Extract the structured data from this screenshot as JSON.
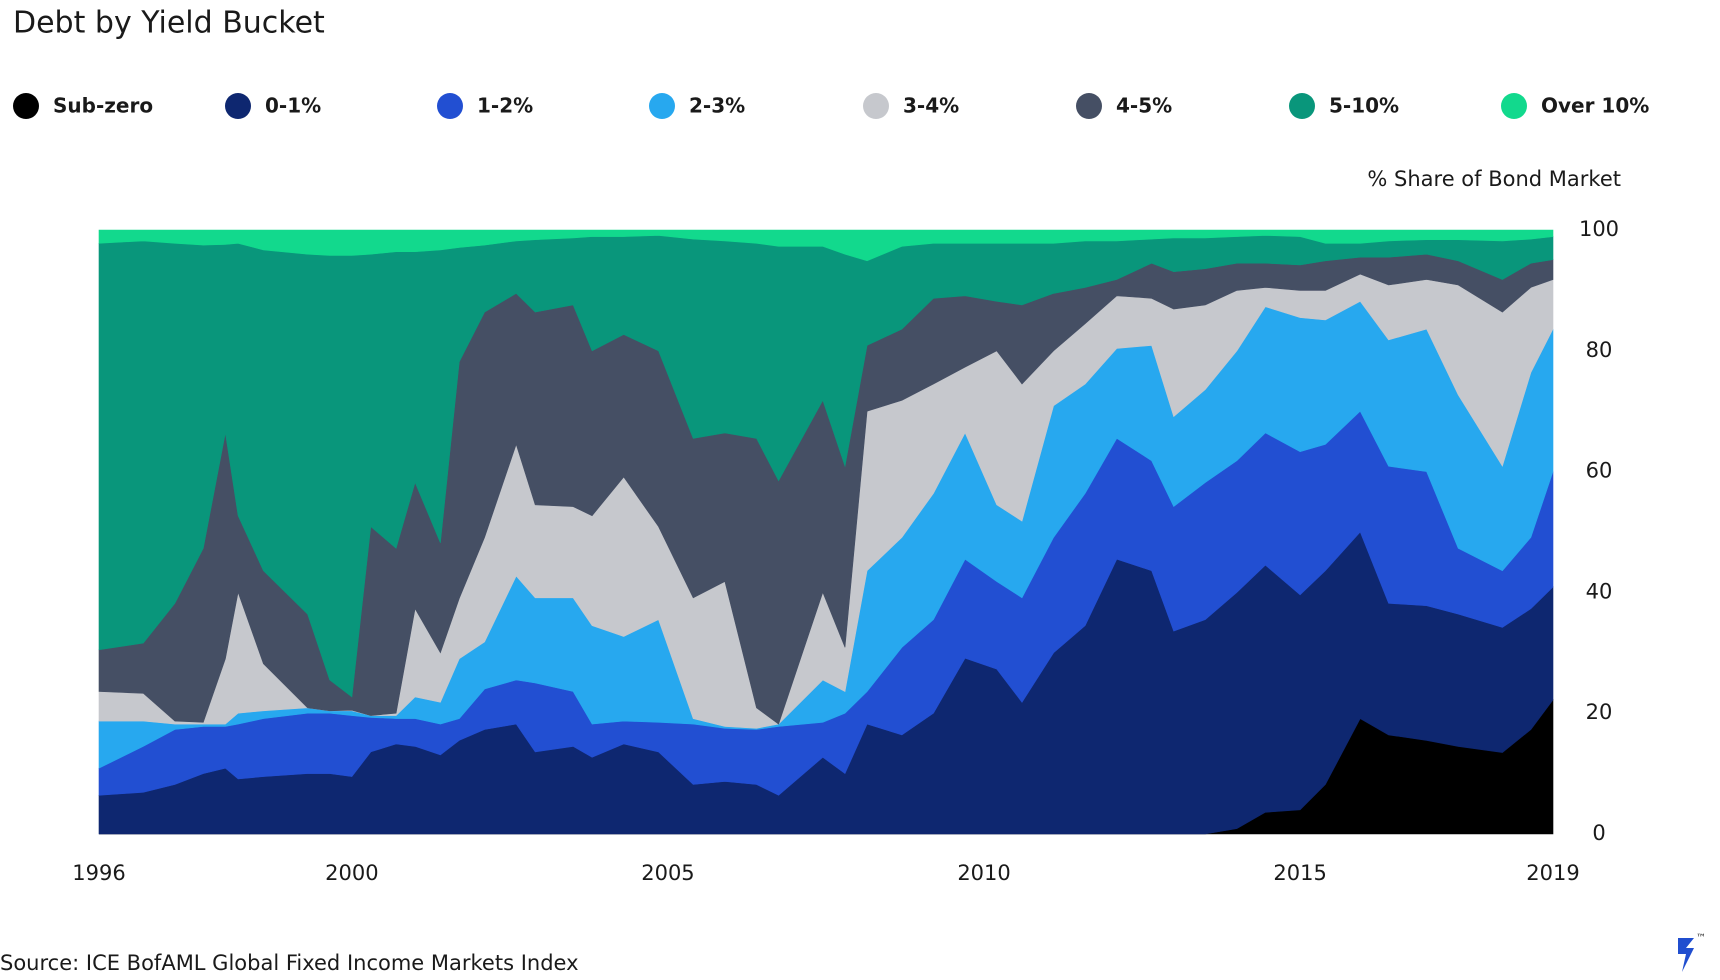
{
  "chart_data": {
    "type": "stacked_area",
    "title": "Debt by Yield Bucket",
    "y_axis_label": "% Share of Bond Market",
    "source": "Source: ICE BofAML Global Fixed Income Markets Index",
    "legend": "top",
    "xlim": [
      1996,
      2019
    ],
    "xticks": [
      1996,
      2000,
      2005,
      2010,
      2015,
      2019
    ],
    "ylim": [
      0,
      100
    ],
    "yticks": [
      0,
      20,
      40,
      60,
      80,
      100
    ],
    "grid": false,
    "x": [
      1996.0,
      1996.7,
      1997.2,
      1997.65,
      1998.0,
      1998.2,
      1998.6,
      1999.3,
      1999.65,
      2000.0,
      2000.3,
      2000.7,
      2001.0,
      2001.4,
      2001.7,
      2002.1,
      2002.6,
      2002.9,
      2003.5,
      2003.8,
      2004.3,
      2004.85,
      2005.4,
      2005.9,
      2006.4,
      2006.75,
      2007.45,
      2007.8,
      2008.15,
      2008.7,
      2009.2,
      2009.7,
      2010.2,
      2010.6,
      2011.1,
      2011.6,
      2012.1,
      2012.65,
      2013.0,
      2013.5,
      2014.0,
      2014.45,
      2015.0,
      2015.4,
      2015.95,
      2016.4,
      2017.0,
      2017.5,
      2018.2,
      2018.65,
      2019.0
    ],
    "series": [
      {
        "name": "Sub-zero",
        "color": "#000000",
        "values": [
          0,
          0,
          0,
          0,
          0,
          0,
          0,
          0,
          0,
          0,
          0,
          0,
          0,
          0,
          0,
          0,
          0,
          0,
          0,
          0,
          0,
          0,
          0,
          0,
          0,
          0,
          0,
          0,
          0,
          0,
          0,
          0,
          0,
          0,
          0,
          0,
          0,
          0,
          0,
          0,
          0.9,
          3.6,
          4,
          8.2,
          19.1,
          16.4,
          15.5,
          14.5,
          13.5,
          17.3,
          22.2
        ]
      },
      {
        "name": "0-1%",
        "color": "#0e2770",
        "values": [
          6.4,
          6.9,
          8.2,
          10,
          10.9,
          9.1,
          9.5,
          10,
          10,
          9.5,
          13.6,
          14.9,
          14.5,
          13.1,
          15.5,
          17.3,
          18.2,
          13.6,
          14.5,
          12.7,
          14.9,
          13.6,
          8.2,
          8.7,
          8.2,
          6.4,
          12.7,
          10,
          18.2,
          16.4,
          20,
          29.1,
          27.3,
          21.8,
          30,
          34.5,
          45.5,
          43.6,
          33.6,
          35.5,
          39.1,
          40.9,
          35.6,
          35.4,
          30.9,
          21.8,
          22.3,
          21.9,
          20.7,
          20,
          18.7
        ]
      },
      {
        "name": "1-2%",
        "color": "#224fd2",
        "values": [
          4.5,
          7.6,
          9.1,
          7.8,
          6.9,
          9.1,
          9.6,
          10,
          10,
          10.1,
          5.7,
          4.2,
          4.6,
          5.1,
          3.6,
          6.7,
          7.3,
          11.4,
          9.1,
          5.5,
          3.8,
          4.9,
          10,
          8.8,
          9.1,
          11.4,
          5.8,
          10,
          5.4,
          14.5,
          15.5,
          16.4,
          14.5,
          17.3,
          19.1,
          21.9,
          20,
          18.2,
          20.6,
          22.7,
          21.8,
          21.9,
          23.7,
          20.9,
          20,
          22.7,
          22.2,
          10.9,
          9.4,
          11.8,
          19.1
        ]
      },
      {
        "name": "2-3%",
        "color": "#27a8ef",
        "values": [
          7.8,
          4.2,
          0.9,
          0.4,
          0.4,
          1.8,
          1.3,
          0.9,
          0.4,
          0.8,
          0.3,
          0.5,
          3.6,
          3.6,
          9.9,
          7.8,
          17.2,
          14.1,
          15.5,
          16.3,
          14,
          17,
          0.9,
          0.3,
          0.2,
          0.4,
          7,
          3.6,
          20,
          18.2,
          20.9,
          20.9,
          12.7,
          12.7,
          21.8,
          18.1,
          14.9,
          19.1,
          14.9,
          15.4,
          18.2,
          20.9,
          22.2,
          20.6,
          18.2,
          20.9,
          23.6,
          25.4,
          17.3,
          27.3,
          23.6
        ]
      },
      {
        "name": "3-4%",
        "color": "#c6c8cd",
        "values": [
          4.9,
          4.6,
          0.5,
          0.3,
          10.8,
          20,
          7.8,
          0,
          0,
          0.1,
          0,
          0.4,
          14.6,
          8.2,
          10,
          17.3,
          21.8,
          15.4,
          15.1,
          18.2,
          26.4,
          15.4,
          20,
          24,
          3.4,
          0,
          14.5,
          7.3,
          26.4,
          22.7,
          18.1,
          10.9,
          25.5,
          22.7,
          9.1,
          10,
          8.7,
          7.8,
          17.8,
          14,
          10,
          3.2,
          4.5,
          4.9,
          4.5,
          9.1,
          8.2,
          18.2,
          25.5,
          14.1,
          8.2
        ]
      },
      {
        "name": "4-5%",
        "color": "#454f64",
        "values": [
          6.9,
          8.3,
          19.5,
          28.8,
          37.4,
          12.7,
          15.4,
          15.5,
          5.1,
          2.2,
          31.3,
          27.3,
          20.9,
          18.2,
          39.2,
          37.3,
          25,
          31.9,
          33.4,
          27.3,
          23.6,
          29.1,
          26.4,
          24.6,
          44.6,
          40.3,
          31.8,
          30,
          10.9,
          11.8,
          14.2,
          11.8,
          8.2,
          13.1,
          9.5,
          6,
          2.7,
          5.8,
          6.2,
          6,
          4.5,
          4,
          4.2,
          4.9,
          2.8,
          4.6,
          4.2,
          4,
          5.4,
          4,
          3.3
        ]
      },
      {
        "name": "5-10%",
        "color": "#09967b",
        "values": [
          67.3,
          66.6,
          59.6,
          50.2,
          31.2,
          45.1,
          53.1,
          59.6,
          70.3,
          73.1,
          45.1,
          49.1,
          38.2,
          48.5,
          18.9,
          11.1,
          8.7,
          12,
          11.1,
          18.9,
          16.2,
          19.1,
          33,
          31.8,
          32.3,
          38.8,
          25.5,
          35.1,
          14,
          13.7,
          9.1,
          8.7,
          9.6,
          10.2,
          8.3,
          7.7,
          6.4,
          4,
          5.6,
          5.1,
          4.4,
          4.6,
          4.7,
          2.9,
          2.3,
          2.7,
          2.4,
          3.5,
          6.4,
          4,
          3.8
        ]
      },
      {
        "name": "Over 10%",
        "color": "#12d98d",
        "values": [
          2.2,
          1.8,
          2.2,
          2.5,
          2.4,
          2.2,
          3.3,
          4,
          4.2,
          4.2,
          4,
          3.6,
          3.6,
          3.3,
          2.9,
          2.5,
          1.8,
          1.6,
          1.3,
          1.1,
          1.1,
          0.9,
          1.5,
          1.8,
          2.2,
          2.7,
          2.7,
          4,
          5.1,
          2.7,
          2.2,
          2.2,
          2.2,
          2.2,
          2.2,
          1.8,
          1.8,
          1.5,
          1.3,
          1.3,
          1.1,
          0.9,
          1.1,
          2.2,
          2.2,
          1.8,
          1.6,
          1.6,
          1.8,
          1.5,
          1.1
        ]
      }
    ]
  }
}
